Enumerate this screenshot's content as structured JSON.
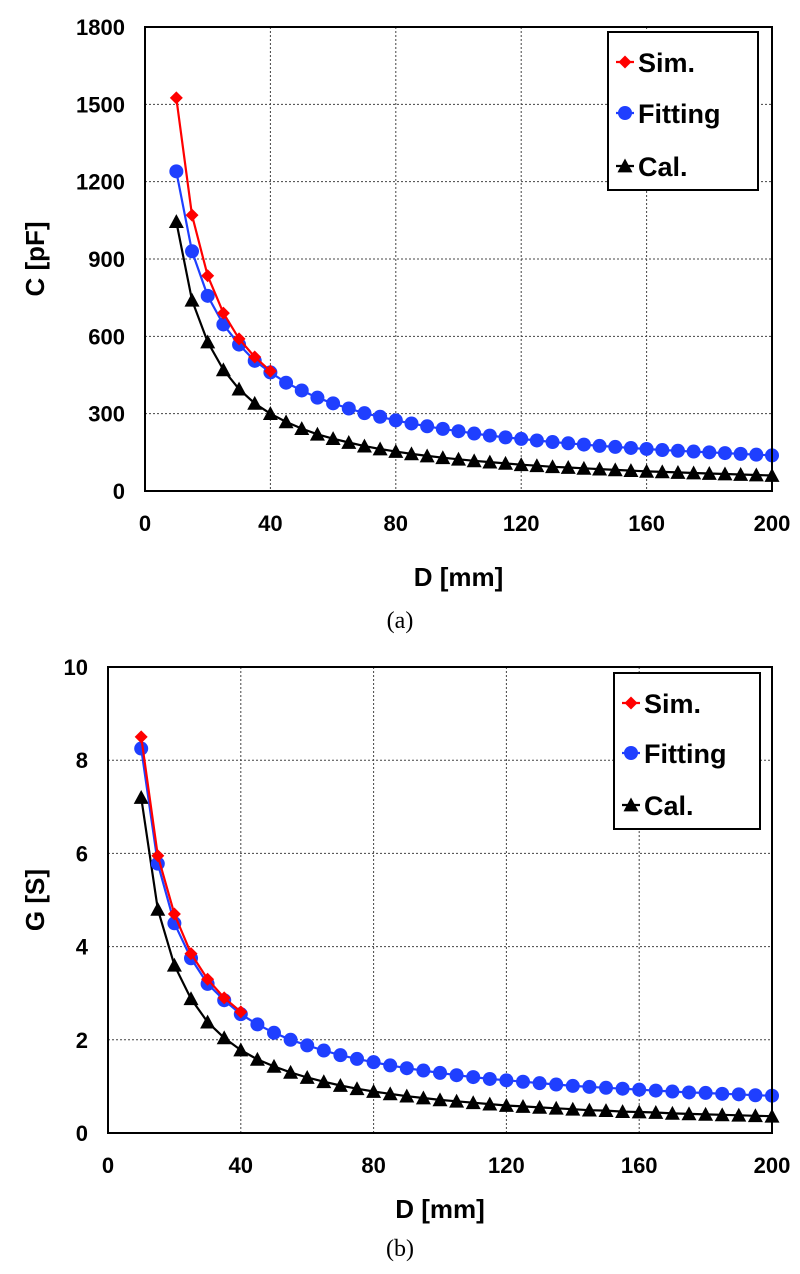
{
  "chart_data": [
    {
      "type": "line",
      "caption": "(a)",
      "xlabel": "D [mm]",
      "ylabel": "C [pF]",
      "xlim": [
        0,
        200
      ],
      "ylim": [
        0,
        1800
      ],
      "xticks": [
        "0",
        "40",
        "80",
        "120",
        "160",
        "200"
      ],
      "yticks": [
        "0",
        "300",
        "600",
        "900",
        "1200",
        "1500",
        "1800"
      ],
      "grid": true,
      "legend_position": "top-right",
      "series": [
        {
          "name": "Sim.",
          "color": "#ff0000",
          "marker": "diamond",
          "x": [
            10,
            15,
            20,
            25,
            30,
            35,
            40
          ],
          "y": [
            1525,
            1070,
            835,
            690,
            590,
            520,
            465
          ]
        },
        {
          "name": "Fitting",
          "color": "#1f3fff",
          "marker": "circle",
          "x": [
            10,
            15,
            20,
            25,
            30,
            35,
            40,
            45,
            50,
            55,
            60,
            65,
            70,
            75,
            80,
            85,
            90,
            95,
            100,
            105,
            110,
            115,
            120,
            125,
            130,
            135,
            140,
            145,
            150,
            155,
            160,
            165,
            170,
            175,
            180,
            185,
            190,
            195,
            200
          ],
          "y": [
            1240,
            930,
            757,
            646,
            568,
            505,
            460,
            420,
            390,
            362,
            340,
            320,
            302,
            288,
            274,
            262,
            251,
            241,
            232,
            223,
            215,
            208,
            202,
            196,
            190,
            185,
            180,
            175,
            171,
            167,
            163,
            159,
            156,
            153,
            150,
            147,
            144,
            141,
            138
          ]
        },
        {
          "name": "Cal.",
          "color": "#000000",
          "marker": "triangle",
          "x": [
            10,
            15,
            20,
            25,
            30,
            35,
            40,
            45,
            50,
            55,
            60,
            65,
            70,
            75,
            80,
            85,
            90,
            95,
            100,
            105,
            110,
            115,
            120,
            125,
            130,
            135,
            140,
            145,
            150,
            155,
            160,
            165,
            170,
            175,
            180,
            185,
            190,
            195,
            200
          ],
          "y": [
            1045,
            740,
            578,
            470,
            395,
            340,
            300,
            268,
            242,
            220,
            203,
            188,
            174,
            163,
            153,
            144,
            136,
            129,
            123,
            117,
            112,
            107,
            102,
            98,
            94,
            91,
            88,
            85,
            82,
            79,
            76,
            74,
            72,
            70,
            68,
            66,
            64,
            62,
            60
          ]
        }
      ]
    },
    {
      "type": "line",
      "caption": "(b)",
      "xlabel": "D [mm]",
      "ylabel": "G [S]",
      "xlim": [
        0,
        200
      ],
      "ylim": [
        0,
        10
      ],
      "xticks": [
        "0",
        "40",
        "80",
        "120",
        "160",
        "200"
      ],
      "yticks": [
        "0",
        "2",
        "4",
        "6",
        "8",
        "10"
      ],
      "grid": true,
      "legend_position": "top-right",
      "series": [
        {
          "name": "Sim.",
          "color": "#ff0000",
          "marker": "diamond",
          "x": [
            10,
            15,
            20,
            25,
            30,
            35,
            40
          ],
          "y": [
            8.5,
            5.95,
            4.7,
            3.85,
            3.3,
            2.9,
            2.6
          ]
        },
        {
          "name": "Fitting",
          "color": "#1f3fff",
          "marker": "circle",
          "x": [
            10,
            15,
            20,
            25,
            30,
            35,
            40,
            45,
            50,
            55,
            60,
            65,
            70,
            75,
            80,
            85,
            90,
            95,
            100,
            105,
            110,
            115,
            120,
            125,
            130,
            135,
            140,
            145,
            150,
            155,
            160,
            165,
            170,
            175,
            180,
            185,
            190,
            195,
            200
          ],
          "y": [
            8.25,
            5.78,
            4.5,
            3.75,
            3.2,
            2.85,
            2.55,
            2.33,
            2.15,
            2.0,
            1.88,
            1.77,
            1.67,
            1.59,
            1.52,
            1.45,
            1.39,
            1.34,
            1.29,
            1.24,
            1.2,
            1.16,
            1.13,
            1.1,
            1.07,
            1.04,
            1.01,
            0.99,
            0.97,
            0.95,
            0.93,
            0.91,
            0.89,
            0.87,
            0.86,
            0.84,
            0.83,
            0.81,
            0.8
          ]
        },
        {
          "name": "Cal.",
          "color": "#000000",
          "marker": "triangle",
          "x": [
            10,
            15,
            20,
            25,
            30,
            35,
            40,
            45,
            50,
            55,
            60,
            65,
            70,
            75,
            80,
            85,
            90,
            95,
            100,
            105,
            110,
            115,
            120,
            125,
            130,
            135,
            140,
            145,
            150,
            155,
            160,
            165,
            170,
            175,
            180,
            185,
            190,
            195,
            200
          ],
          "y": [
            7.2,
            4.8,
            3.6,
            2.88,
            2.38,
            2.04,
            1.78,
            1.58,
            1.43,
            1.3,
            1.19,
            1.1,
            1.02,
            0.95,
            0.89,
            0.84,
            0.79,
            0.75,
            0.71,
            0.68,
            0.65,
            0.62,
            0.59,
            0.57,
            0.55,
            0.53,
            0.51,
            0.49,
            0.48,
            0.46,
            0.45,
            0.44,
            0.42,
            0.41,
            0.4,
            0.39,
            0.38,
            0.37,
            0.36
          ]
        }
      ]
    }
  ]
}
